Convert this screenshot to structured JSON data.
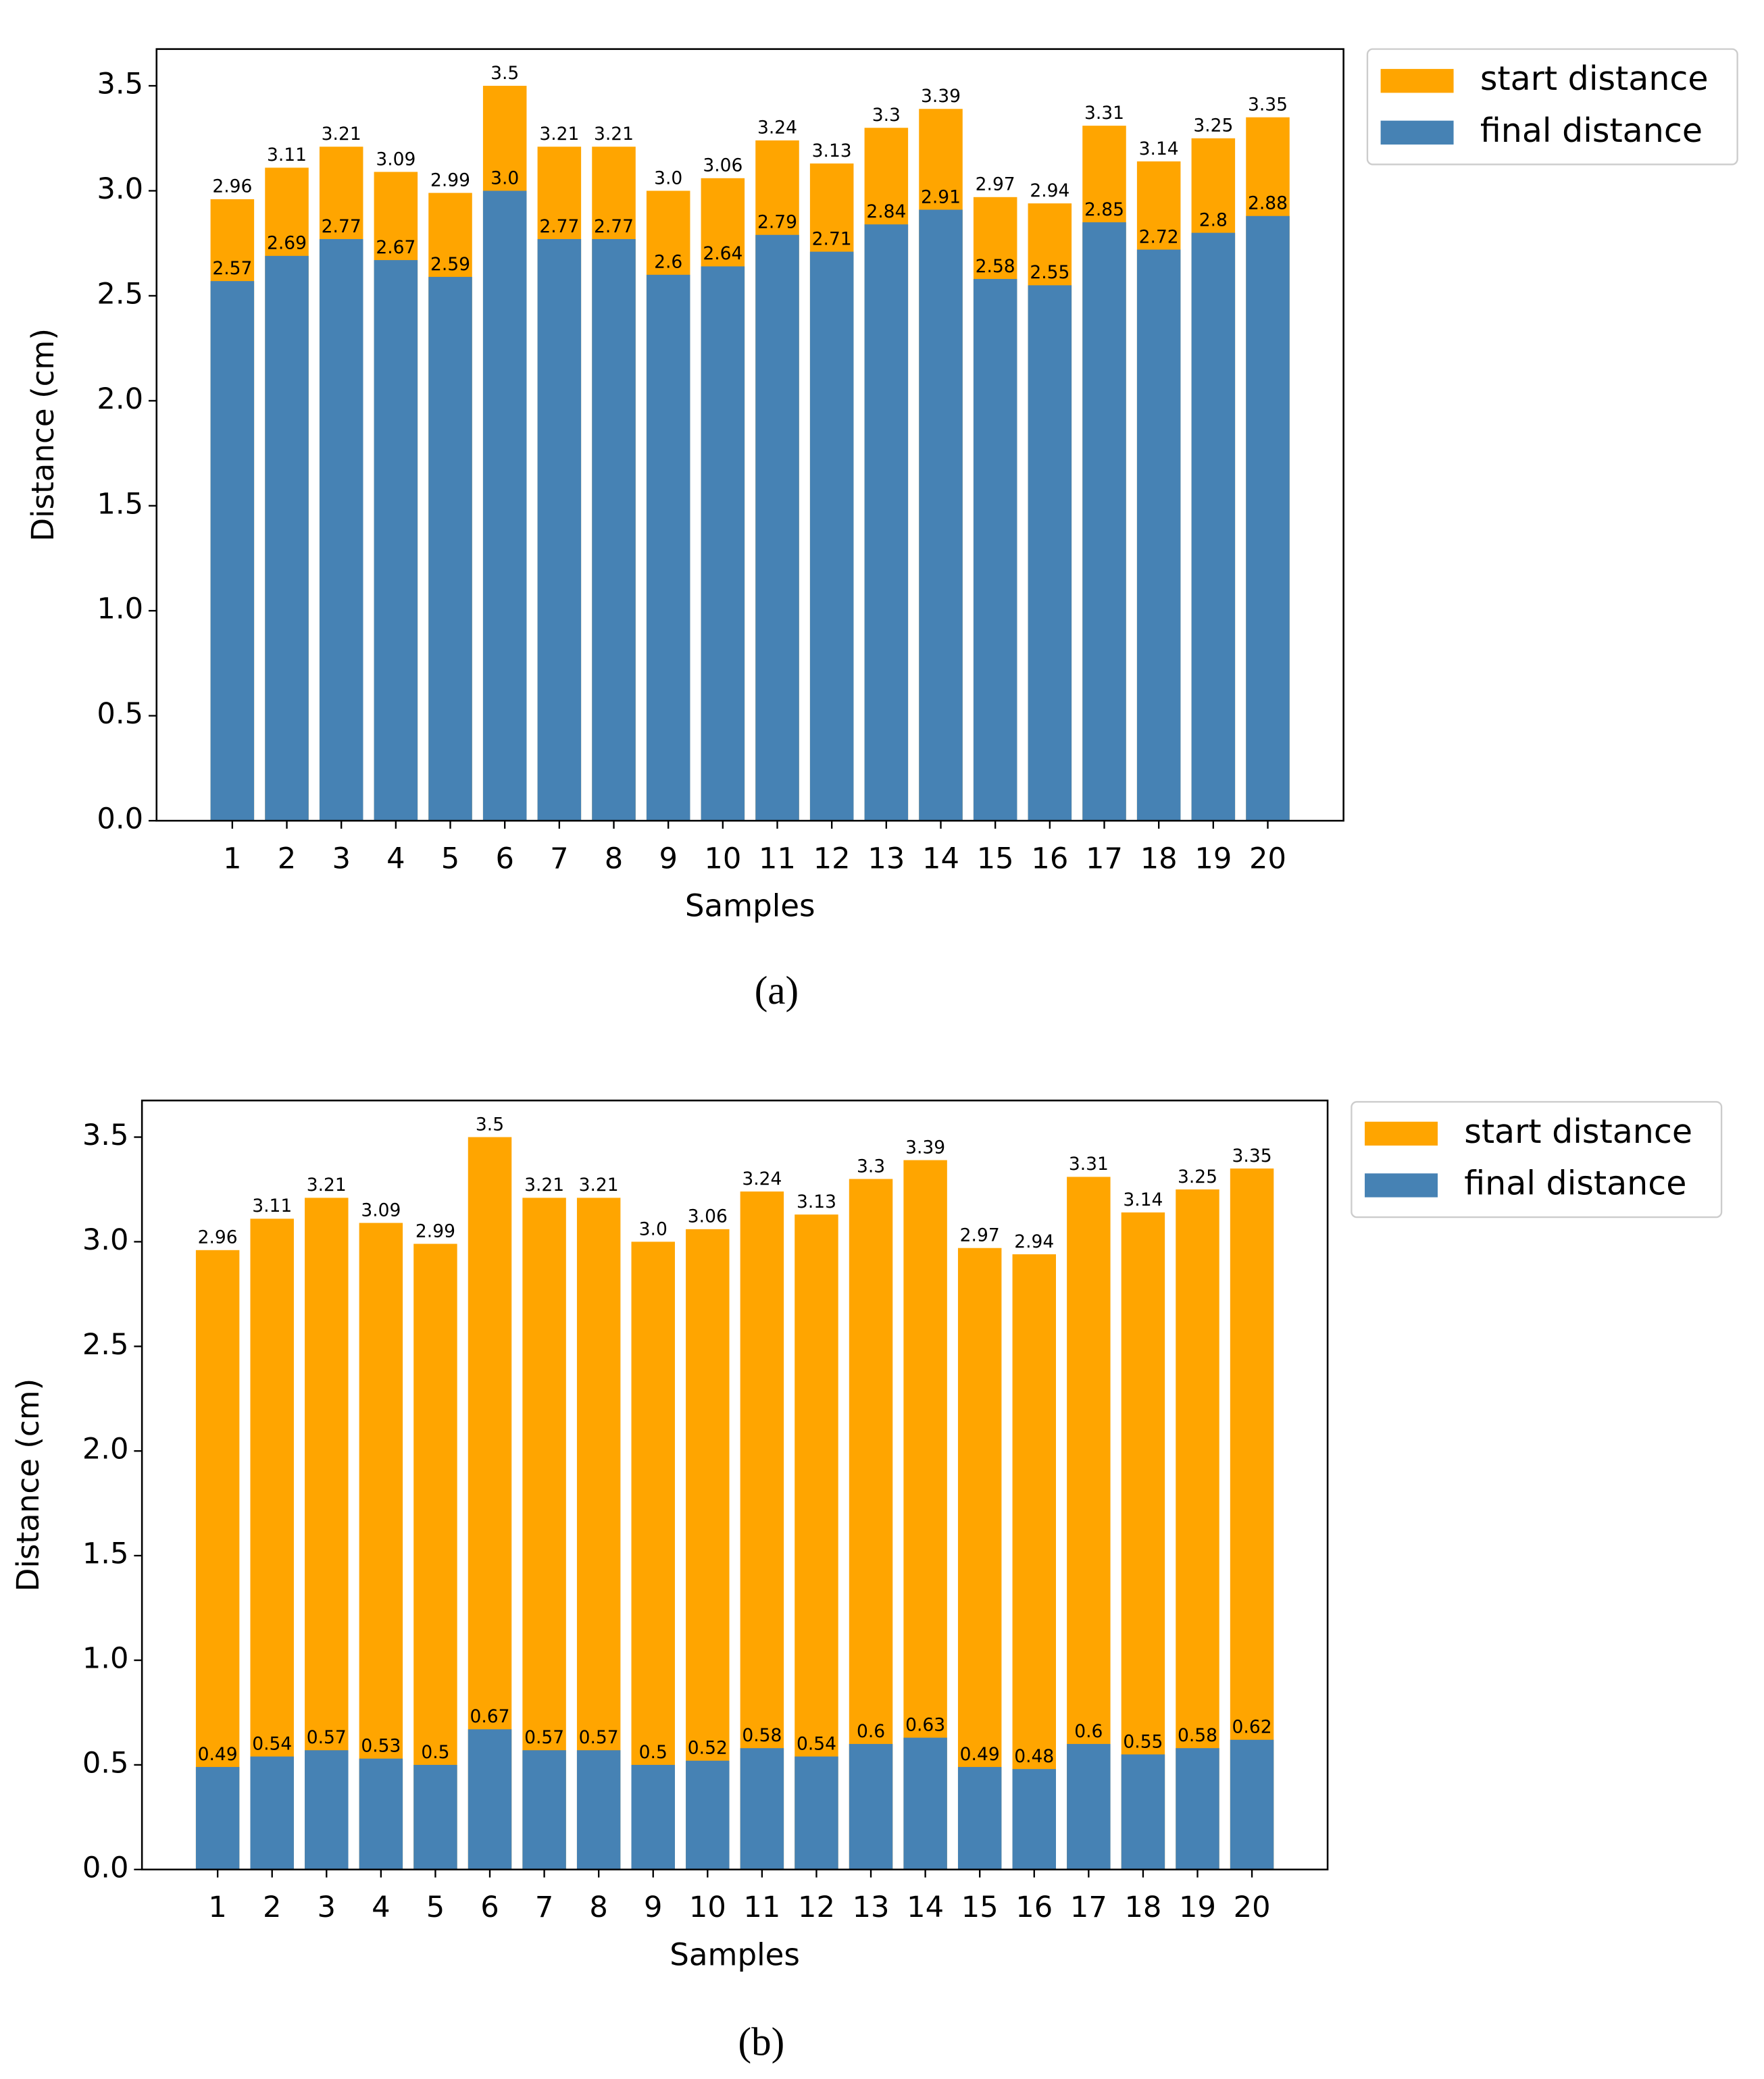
{
  "chart_data": [
    {
      "type": "bar",
      "caption": "(a)",
      "x_label": "Samples",
      "y_label": "Distance (cm)",
      "categories": [
        "1",
        "2",
        "3",
        "4",
        "5",
        "6",
        "7",
        "8",
        "9",
        "10",
        "11",
        "12",
        "13",
        "14",
        "15",
        "16",
        "17",
        "18",
        "19",
        "20"
      ],
      "series": [
        {
          "name": "start distance",
          "color": "#ffa500",
          "values": [
            2.96,
            3.11,
            3.21,
            3.09,
            2.99,
            3.5,
            3.21,
            3.21,
            3.0,
            3.06,
            3.24,
            3.13,
            3.3,
            3.39,
            2.97,
            2.94,
            3.31,
            3.14,
            3.25,
            3.35
          ],
          "value_labels": [
            "2.96",
            "3.11",
            "3.21",
            "3.09",
            "2.99",
            "3.5",
            "3.21",
            "3.21",
            "3.0",
            "3.06",
            "3.24",
            "3.13",
            "3.3",
            "3.39",
            "2.97",
            "2.94",
            "3.31",
            "3.14",
            "3.25",
            "3.35"
          ]
        },
        {
          "name": "final distance",
          "color": "#4682b4",
          "values": [
            2.57,
            2.69,
            2.77,
            2.67,
            2.59,
            3.0,
            2.77,
            2.77,
            2.6,
            2.64,
            2.79,
            2.71,
            2.84,
            2.91,
            2.58,
            2.55,
            2.85,
            2.72,
            2.8,
            2.88
          ],
          "value_labels": [
            "2.57",
            "2.69",
            "2.77",
            "2.67",
            "2.59",
            "3.0",
            "2.77",
            "2.77",
            "2.6",
            "2.64",
            "2.79",
            "2.71",
            "2.84",
            "2.91",
            "2.58",
            "2.55",
            "2.85",
            "2.72",
            "2.8",
            "2.88"
          ]
        }
      ],
      "ylim": [
        0,
        3.675
      ],
      "yticks": [
        {
          "value": 0,
          "label": "0.0"
        },
        0.5,
        {
          "value": 1,
          "label": "1.0"
        },
        1.5,
        {
          "value": 2,
          "label": "2.0"
        },
        2.5,
        {
          "value": 3,
          "label": "3.0"
        },
        3.5
      ],
      "legend": "outside-upper-right"
    },
    {
      "type": "bar",
      "caption": "(b)",
      "x_label": "Samples",
      "y_label": "Distance (cm)",
      "categories": [
        "1",
        "2",
        "3",
        "4",
        "5",
        "6",
        "7",
        "8",
        "9",
        "10",
        "11",
        "12",
        "13",
        "14",
        "15",
        "16",
        "17",
        "18",
        "19",
        "20"
      ],
      "series": [
        {
          "name": "start distance",
          "color": "#ffa500",
          "values": [
            2.96,
            3.11,
            3.21,
            3.09,
            2.99,
            3.5,
            3.21,
            3.21,
            3.0,
            3.06,
            3.24,
            3.13,
            3.3,
            3.39,
            2.97,
            2.94,
            3.31,
            3.14,
            3.25,
            3.35
          ],
          "value_labels": [
            "2.96",
            "3.11",
            "3.21",
            "3.09",
            "2.99",
            "3.5",
            "3.21",
            "3.21",
            "3.0",
            "3.06",
            "3.24",
            "3.13",
            "3.3",
            "3.39",
            "2.97",
            "2.94",
            "3.31",
            "3.14",
            "3.25",
            "3.35"
          ]
        },
        {
          "name": "final distance",
          "color": "#4682b4",
          "values": [
            0.49,
            0.54,
            0.57,
            0.53,
            0.5,
            0.67,
            0.57,
            0.57,
            0.5,
            0.52,
            0.58,
            0.54,
            0.6,
            0.63,
            0.49,
            0.48,
            0.6,
            0.55,
            0.58,
            0.62
          ],
          "value_labels": [
            "0.49",
            "0.54",
            "0.57",
            "0.53",
            "0.5",
            "0.67",
            "0.57",
            "0.57",
            "0.5",
            "0.52",
            "0.58",
            "0.54",
            "0.6",
            "0.63",
            "0.49",
            "0.48",
            "0.6",
            "0.55",
            "0.58",
            "0.62"
          ]
        }
      ],
      "ylim": [
        0,
        3.675
      ],
      "yticks": [
        {
          "value": 0,
          "label": "0.0"
        },
        0.5,
        {
          "value": 1,
          "label": "1.0"
        },
        1.5,
        {
          "value": 2,
          "label": "2.0"
        },
        2.5,
        {
          "value": 3,
          "label": "3.0"
        },
        3.5
      ],
      "legend": "outside-upper-right"
    }
  ]
}
